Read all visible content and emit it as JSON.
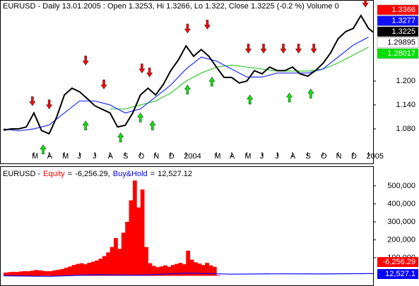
{
  "chart_data": [
    {
      "type": "line",
      "title": "EURUSD - Daily 13.01.2005 : Open 1.3253, Hi 1.3266, Lo 1.322, Close 1.3225 (-0.2 %) Volume 0",
      "xlim": [
        0,
        24.3
      ],
      "xticks": [
        {
          "value": 2,
          "label": "M"
        },
        {
          "value": 3,
          "label": "A"
        },
        {
          "value": 4,
          "label": "M"
        },
        {
          "value": 5,
          "label": "J"
        },
        {
          "value": 6,
          "label": "J"
        },
        {
          "value": 7,
          "label": "A"
        },
        {
          "value": 8,
          "label": "S"
        },
        {
          "value": 9,
          "label": "O"
        },
        {
          "value": 10,
          "label": "N"
        },
        {
          "value": 11,
          "label": "D"
        },
        {
          "value": 12,
          "label": "2004"
        },
        {
          "value": 14,
          "label": "M"
        },
        {
          "value": 15,
          "label": "A"
        },
        {
          "value": 16,
          "label": "M"
        },
        {
          "value": 17,
          "label": "J"
        },
        {
          "value": 18,
          "label": "J"
        },
        {
          "value": 19,
          "label": "A"
        },
        {
          "value": 20,
          "label": "S"
        },
        {
          "value": 21,
          "label": "O"
        },
        {
          "value": 22,
          "label": "N"
        },
        {
          "value": 23,
          "label": "D"
        },
        {
          "value": 24,
          "label": "2005"
        }
      ],
      "ylim": [
        0.997,
        1.396
      ],
      "yticks": [
        {
          "value": 1.08,
          "label": "1.080"
        },
        {
          "value": 1.14,
          "label": "1.140"
        },
        {
          "value": 1.2,
          "label": "1.200"
        }
      ],
      "series": [
        {
          "color": "#33cc33",
          "x": [
            7,
            8,
            9,
            10,
            11,
            12,
            13,
            14,
            15,
            16,
            17,
            18,
            19,
            20,
            21,
            22,
            23,
            24
          ],
          "values": [
            1.13,
            1.13,
            1.14,
            1.15,
            1.17,
            1.2,
            1.22,
            1.235,
            1.24,
            1.235,
            1.23,
            1.225,
            1.225,
            1.225,
            1.23,
            1.245,
            1.265,
            1.285
          ]
        },
        {
          "color": "#1f2fff",
          "x": [
            0,
            1,
            2,
            3,
            4,
            5,
            6,
            7,
            8,
            9,
            10,
            11,
            12,
            13,
            14,
            15,
            16,
            17,
            18,
            19,
            20,
            21,
            22,
            23,
            24
          ],
          "values": [
            1.08,
            1.075,
            1.08,
            1.09,
            1.12,
            1.15,
            1.15,
            1.14,
            1.12,
            1.13,
            1.16,
            1.19,
            1.23,
            1.26,
            1.25,
            1.23,
            1.21,
            1.21,
            1.22,
            1.22,
            1.22,
            1.23,
            1.26,
            1.29,
            1.31
          ]
        },
        {
          "color": "#000000",
          "x": [
            0,
            0.5,
            1,
            1.5,
            2,
            2.5,
            3,
            3.5,
            4,
            4.5,
            5,
            5.5,
            6,
            6.5,
            7,
            7.5,
            8,
            8.5,
            9,
            9.5,
            10,
            10.5,
            11,
            11.5,
            12,
            12.5,
            13,
            13.5,
            14,
            14.5,
            15,
            15.5,
            16,
            16.5,
            17,
            17.5,
            18,
            18.5,
            19,
            19.5,
            20,
            20.5,
            21,
            21.5,
            22,
            22.5,
            23,
            23.5,
            24,
            24.3
          ],
          "values": [
            1.077,
            1.08,
            1.08,
            1.085,
            1.12,
            1.076,
            1.068,
            1.11,
            1.165,
            1.182,
            1.173,
            1.156,
            1.138,
            1.129,
            1.12,
            1.085,
            1.089,
            1.12,
            1.165,
            1.182,
            1.165,
            1.191,
            1.226,
            1.253,
            1.288,
            1.262,
            1.279,
            1.262,
            1.235,
            1.209,
            1.209,
            1.195,
            1.2,
            1.226,
            1.218,
            1.235,
            1.226,
            1.226,
            1.235,
            1.218,
            1.212,
            1.226,
            1.244,
            1.27,
            1.306,
            1.324,
            1.332,
            1.364,
            1.332,
            1.3225
          ]
        }
      ],
      "markers": [
        {
          "direction": "down",
          "color": "#ff0000",
          "x": [
            1.9,
            3.0,
            5.4,
            6.6,
            9.1,
            9.6,
            12.1,
            13.4,
            16.1,
            17.1,
            18.4,
            19.4,
            20.4,
            23.8
          ],
          "values": [
            1.138,
            1.13,
            1.24,
            1.18,
            1.22,
            1.21,
            1.32,
            1.33,
            1.27,
            1.27,
            1.27,
            1.27,
            1.27,
            1.385
          ]
        },
        {
          "direction": "up",
          "color": "#00ee00",
          "x": [
            2.6,
            5.4,
            7.7,
            9.0,
            9.8,
            12.1,
            13.7,
            16.2,
            18.8,
            20.2
          ],
          "values": [
            1.04,
            1.1,
            1.07,
            1.12,
            1.1,
            1.19,
            1.21,
            1.165,
            1.17,
            1.18
          ]
        }
      ],
      "price_labels": [
        {
          "value": 1.3366,
          "color": "#ff0000"
        },
        {
          "value": 1.3277,
          "color": "#1010ff"
        },
        {
          "value": 1.3225,
          "color": "#000000"
        },
        {
          "value": 1.29895,
          "color": "#ffffff"
        },
        {
          "value": 1.28017,
          "color": "#00e000"
        }
      ]
    },
    {
      "type": "area",
      "title": "EURUSD -",
      "equals": "=",
      "separator": ",",
      "xlim": [
        0,
        24.3
      ],
      "ylim": [
        -49000,
        578000
      ],
      "yticks": [
        {
          "value": 100000,
          "label": "100,000"
        },
        {
          "value": 200000,
          "label": "200,000"
        },
        {
          "value": 300000,
          "label": "300,000"
        },
        {
          "value": 400000,
          "label": "400,000"
        },
        {
          "value": 500000,
          "label": "500,000"
        }
      ],
      "series": [
        {
          "name": "Equity",
          "color": "#ff0000",
          "current": {
            "value": -6256.29,
            "label": "-6,256.29"
          },
          "axis_label": {
            "value": -6256.29,
            "label": "-6,256.29"
          },
          "x": [
            0,
            0.25,
            0.5,
            0.75,
            1,
            1.25,
            1.5,
            1.75,
            2,
            2.25,
            2.5,
            2.75,
            3,
            3.25,
            3.5,
            3.75,
            4,
            4.25,
            4.5,
            4.75,
            5,
            5.25,
            5.5,
            5.75,
            6,
            6.25,
            6.5,
            6.75,
            7,
            7.25,
            7.5,
            7.75,
            8,
            8.25,
            8.5,
            8.75,
            9,
            9.25,
            9.5,
            9.75,
            10,
            10.25,
            10.5,
            10.75,
            11,
            11.25,
            11.5,
            11.75,
            12,
            12.25,
            12.5,
            12.75,
            13,
            13.25,
            13.5,
            13.75,
            14,
            24.3
          ],
          "values": [
            18000,
            20000,
            22000,
            21000,
            24000,
            26000,
            25000,
            28000,
            32000,
            30000,
            27000,
            25000,
            26000,
            30000,
            34000,
            38000,
            45000,
            52000,
            60000,
            66000,
            70000,
            64000,
            72000,
            78000,
            85000,
            95000,
            110000,
            130000,
            160000,
            210000,
            150000,
            240000,
            300000,
            420000,
            530000,
            380000,
            480000,
            160000,
            70000,
            55000,
            48000,
            52000,
            58000,
            50000,
            60000,
            66000,
            72000,
            64000,
            140000,
            90000,
            75000,
            68000,
            60000,
            72000,
            58000,
            50000,
            3000,
            -6256.29
          ]
        },
        {
          "name": "Buy&Hold",
          "color": "#0000ff",
          "current": {
            "value": 12527.12,
            "label": "12,527.12"
          },
          "axis_label": {
            "value": 12527.1,
            "label": "12,527.1"
          },
          "x": [
            0,
            3,
            6,
            9,
            12,
            15,
            18,
            21,
            24.3
          ],
          "values": [
            0,
            -3000,
            6000,
            3000,
            15000,
            9000,
            11000,
            10000,
            12527.12
          ]
        }
      ]
    }
  ]
}
